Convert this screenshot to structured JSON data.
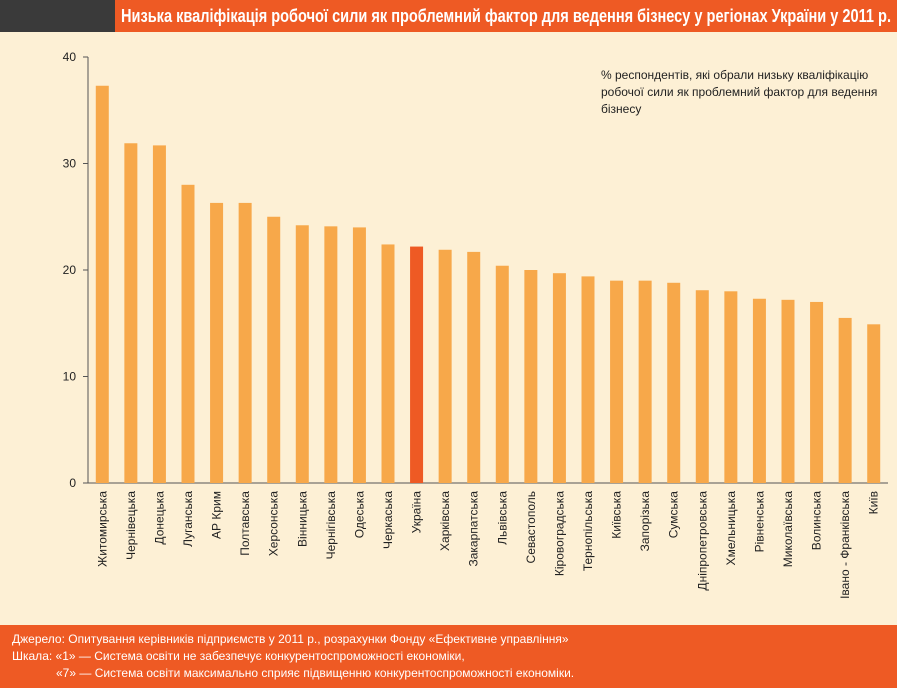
{
  "chart_data": {
    "type": "bar",
    "title": "Низька кваліфікація робочої сили як проблемний фактор для ведення бізнесу у регіонах України у 2011 р.",
    "annotation": [
      "% респондентів, які обрали низьку кваліфікацію",
      "робочої сили як проблемний фактор для ведення",
      "бізнесу"
    ],
    "categories": [
      "Житомирська",
      "Чернівецька",
      "Донецька",
      "Луганська",
      "АР Крим",
      "Полтавська",
      "Херсонська",
      "Вінницька",
      "Чернігівська",
      "Одеська",
      "Черкаська",
      "Україна",
      "Харківська",
      "Закарпатська",
      "Львівська",
      "Севастополь",
      "Кіровоградська",
      "Тернопільська",
      "Київська",
      "Запорізька",
      "Сумська",
      "Дніпропетровська",
      "Хмельницька",
      "Рівненська",
      "Миколаївська",
      "Волинська",
      "Івано - Франківська",
      "Київ"
    ],
    "values": [
      37.3,
      31.9,
      31.7,
      28.0,
      26.3,
      26.3,
      25.0,
      24.2,
      24.1,
      24.0,
      22.4,
      22.2,
      21.9,
      21.7,
      20.4,
      20.0,
      19.7,
      19.4,
      19.0,
      19.0,
      18.8,
      18.1,
      18.0,
      17.3,
      17.2,
      17.0,
      15.5,
      14.9
    ],
    "colors": [
      "#f7a84a",
      "#f7a84a",
      "#f7a84a",
      "#f7a84a",
      "#f7a84a",
      "#f7a84a",
      "#f7a84a",
      "#f7a84a",
      "#f7a84a",
      "#f7a84a",
      "#f7a84a",
      "#ee5a24",
      "#f7a84a",
      "#f7a84a",
      "#f7a84a",
      "#f7a84a",
      "#f7a84a",
      "#f7a84a",
      "#f7a84a",
      "#f7a84a",
      "#f7a84a",
      "#f7a84a",
      "#f7a84a",
      "#f7a84a",
      "#f7a84a",
      "#f7a84a",
      "#f7a84a",
      "#f7a84a"
    ],
    "ylim": [
      0,
      40
    ],
    "yticks": [
      0,
      10,
      20,
      30,
      40
    ],
    "grid": false,
    "footer": [
      "Джерело: Опитування керівників підприємств у 2011 р., розрахунки Фонду «Ефективне управління»",
      "Шкала: «1» — Система освіти не забезпечує конкурентоспроможності економіки,",
      "«7» — Система освіти максимально сприяє підвищенню конкурентоспроможності економіки."
    ]
  }
}
